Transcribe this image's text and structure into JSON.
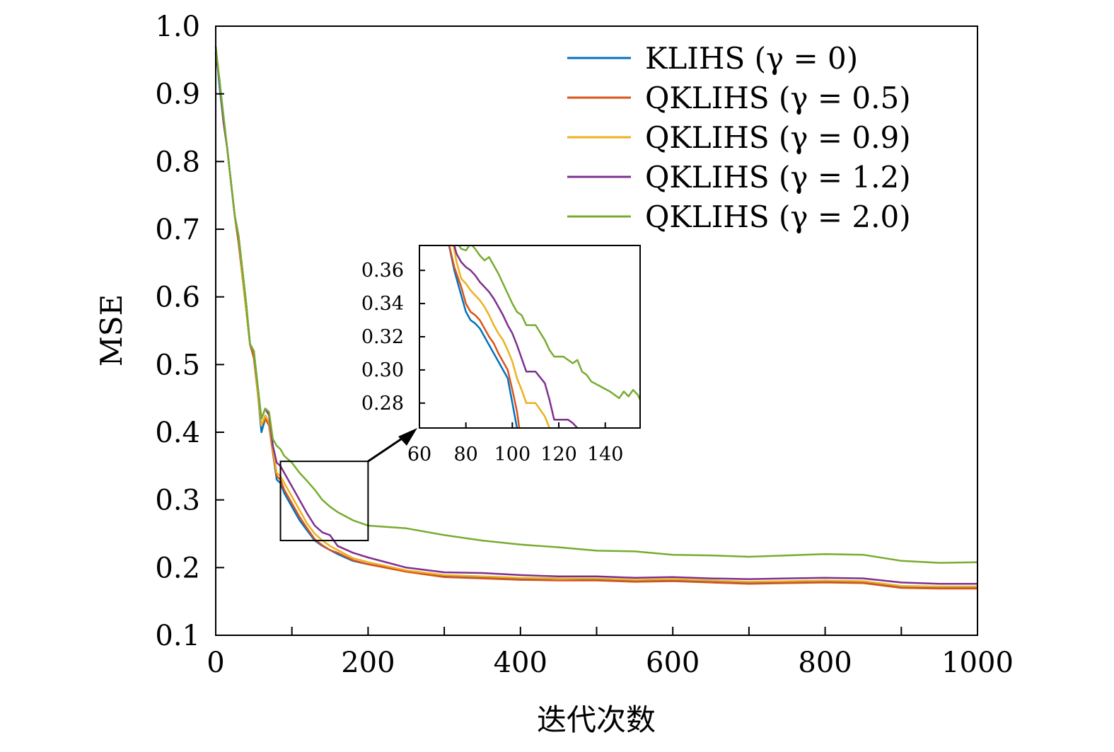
{
  "chart_data": {
    "type": "line",
    "title": "",
    "xlabel": "迭代次数",
    "ylabel": "MSE",
    "xlim": [
      0,
      1000
    ],
    "ylim": [
      0.1,
      1.0
    ],
    "x_ticks": [
      0,
      200,
      400,
      600,
      800,
      1000
    ],
    "y_ticks": [
      0.1,
      0.2,
      0.3,
      0.4,
      0.5,
      0.6,
      0.7,
      0.8,
      0.9,
      1.0
    ],
    "x_tick_labels": [
      "0",
      "200",
      "400",
      "600",
      "800",
      "1000"
    ],
    "y_tick_labels": [
      "0.1",
      "0.2",
      "0.3",
      "0.4",
      "0.5",
      "0.6",
      "0.7",
      "0.8",
      "0.9",
      "1.0"
    ],
    "legend_position": "top-right",
    "series": [
      {
        "name": "KLIHS (γ = 0)",
        "color": "#0072BD",
        "x": [
          0,
          5,
          10,
          15,
          20,
          25,
          30,
          35,
          40,
          45,
          50,
          55,
          60,
          65,
          70,
          75,
          80,
          85,
          90,
          95,
          100,
          110,
          120,
          130,
          140,
          150,
          160,
          180,
          200,
          250,
          300,
          350,
          400,
          450,
          500,
          550,
          600,
          650,
          700,
          750,
          800,
          850,
          900,
          950,
          1000
        ],
        "y": [
          0.97,
          0.91,
          0.86,
          0.82,
          0.77,
          0.72,
          0.68,
          0.63,
          0.58,
          0.53,
          0.51,
          0.46,
          0.4,
          0.42,
          0.41,
          0.37,
          0.33,
          0.325,
          0.31,
          0.3,
          0.29,
          0.27,
          0.255,
          0.24,
          0.232,
          0.226,
          0.22,
          0.21,
          0.205,
          0.195,
          0.188,
          0.186,
          0.184,
          0.184,
          0.183,
          0.181,
          0.182,
          0.179,
          0.178,
          0.179,
          0.18,
          0.179,
          0.172,
          0.171,
          0.17
        ]
      },
      {
        "name": "QKLIHS (γ = 0.5)",
        "color": "#D95319",
        "x": [
          0,
          5,
          10,
          15,
          20,
          25,
          30,
          35,
          40,
          45,
          50,
          55,
          60,
          65,
          70,
          75,
          80,
          85,
          90,
          95,
          100,
          110,
          120,
          130,
          140,
          150,
          160,
          180,
          200,
          250,
          300,
          350,
          400,
          450,
          500,
          550,
          600,
          650,
          700,
          750,
          800,
          850,
          900,
          950,
          1000
        ],
        "y": [
          0.96,
          0.92,
          0.86,
          0.82,
          0.77,
          0.72,
          0.68,
          0.63,
          0.58,
          0.53,
          0.51,
          0.46,
          0.41,
          0.42,
          0.41,
          0.37,
          0.335,
          0.33,
          0.315,
          0.305,
          0.295,
          0.275,
          0.258,
          0.242,
          0.233,
          0.226,
          0.222,
          0.211,
          0.205,
          0.194,
          0.186,
          0.184,
          0.182,
          0.181,
          0.181,
          0.179,
          0.18,
          0.178,
          0.176,
          0.177,
          0.178,
          0.177,
          0.17,
          0.169,
          0.169
        ]
      },
      {
        "name": "QKLIHS (γ = 0.9)",
        "color": "#EDB120",
        "x": [
          0,
          5,
          10,
          15,
          20,
          25,
          30,
          35,
          40,
          45,
          50,
          55,
          60,
          65,
          70,
          75,
          80,
          85,
          90,
          95,
          100,
          110,
          120,
          130,
          140,
          150,
          160,
          180,
          200,
          250,
          300,
          350,
          400,
          450,
          500,
          550,
          600,
          650,
          700,
          750,
          800,
          850,
          900,
          950,
          1000
        ],
        "y": [
          0.96,
          0.92,
          0.86,
          0.82,
          0.77,
          0.72,
          0.69,
          0.63,
          0.58,
          0.53,
          0.52,
          0.46,
          0.41,
          0.425,
          0.415,
          0.375,
          0.34,
          0.335,
          0.325,
          0.315,
          0.305,
          0.285,
          0.265,
          0.25,
          0.24,
          0.232,
          0.226,
          0.214,
          0.208,
          0.196,
          0.189,
          0.187,
          0.185,
          0.184,
          0.184,
          0.182,
          0.183,
          0.181,
          0.179,
          0.18,
          0.181,
          0.18,
          0.173,
          0.172,
          0.172
        ]
      },
      {
        "name": "QKLIHS (γ = 1.2)",
        "color": "#7E2F8E",
        "x": [
          0,
          5,
          10,
          15,
          20,
          25,
          30,
          35,
          40,
          45,
          50,
          55,
          60,
          65,
          70,
          75,
          80,
          85,
          90,
          95,
          100,
          110,
          120,
          130,
          140,
          150,
          160,
          180,
          200,
          250,
          300,
          350,
          400,
          450,
          500,
          550,
          600,
          650,
          700,
          750,
          800,
          850,
          900,
          950,
          1000
        ],
        "y": [
          0.96,
          0.92,
          0.86,
          0.82,
          0.77,
          0.72,
          0.69,
          0.64,
          0.59,
          0.53,
          0.52,
          0.47,
          0.42,
          0.435,
          0.425,
          0.38,
          0.355,
          0.35,
          0.34,
          0.33,
          0.32,
          0.3,
          0.28,
          0.262,
          0.252,
          0.248,
          0.232,
          0.222,
          0.215,
          0.2,
          0.193,
          0.192,
          0.189,
          0.187,
          0.187,
          0.185,
          0.186,
          0.184,
          0.183,
          0.184,
          0.185,
          0.184,
          0.178,
          0.176,
          0.176
        ]
      },
      {
        "name": "QKLIHS (γ = 2.0)",
        "color": "#77AC30",
        "x": [
          0,
          5,
          10,
          15,
          20,
          25,
          30,
          35,
          40,
          45,
          50,
          55,
          60,
          65,
          70,
          75,
          80,
          85,
          90,
          95,
          100,
          110,
          120,
          130,
          140,
          150,
          160,
          180,
          200,
          250,
          300,
          350,
          400,
          450,
          500,
          550,
          600,
          650,
          700,
          750,
          800,
          850,
          900,
          950,
          1000
        ],
        "y": [
          0.97,
          0.92,
          0.87,
          0.82,
          0.77,
          0.72,
          0.69,
          0.64,
          0.59,
          0.53,
          0.52,
          0.47,
          0.42,
          0.435,
          0.43,
          0.39,
          0.38,
          0.375,
          0.365,
          0.36,
          0.355,
          0.34,
          0.328,
          0.315,
          0.3,
          0.29,
          0.282,
          0.27,
          0.262,
          0.258,
          0.248,
          0.24,
          0.234,
          0.23,
          0.225,
          0.224,
          0.219,
          0.218,
          0.216,
          0.218,
          0.22,
          0.219,
          0.21,
          0.207,
          0.208
        ]
      }
    ],
    "inset": {
      "xlim": [
        60,
        155
      ],
      "ylim": [
        0.265,
        0.375
      ],
      "x_ticks": [
        60,
        80,
        100,
        120,
        140
      ],
      "y_ticks": [
        0.28,
        0.3,
        0.32,
        0.34,
        0.36
      ],
      "x_tick_labels": [
        "60",
        "80",
        "100",
        "120",
        "140"
      ],
      "y_tick_labels": [
        "0.28",
        "0.30",
        "0.32",
        "0.34",
        "0.36"
      ],
      "zoom_region": {
        "x": [
          85,
          200
        ],
        "y": [
          0.24,
          0.357
        ]
      },
      "series": [
        {
          "name": "KLIHS (γ = 0)",
          "color": "#0072BD",
          "x": [
            72,
            75,
            78,
            80,
            82,
            84,
            86,
            88,
            90,
            92,
            94,
            96,
            98,
            100,
            102
          ],
          "y": [
            0.38,
            0.36,
            0.345,
            0.335,
            0.33,
            0.328,
            0.325,
            0.32,
            0.315,
            0.31,
            0.305,
            0.3,
            0.295,
            0.28,
            0.265
          ]
        },
        {
          "name": "QKLIHS (γ = 0.5)",
          "color": "#D95319",
          "x": [
            72,
            75,
            78,
            80,
            82,
            84,
            86,
            88,
            90,
            92,
            94,
            96,
            98,
            100,
            102,
            103
          ],
          "y": [
            0.38,
            0.362,
            0.35,
            0.34,
            0.335,
            0.333,
            0.33,
            0.325,
            0.32,
            0.316,
            0.31,
            0.305,
            0.3,
            0.288,
            0.275,
            0.265
          ]
        },
        {
          "name": "QKLIHS (γ = 0.9)",
          "color": "#EDB120",
          "x": [
            74,
            76,
            78,
            80,
            82,
            84,
            86,
            88,
            90,
            92,
            94,
            96,
            98,
            100,
            102,
            104,
            106,
            110,
            114,
            116
          ],
          "y": [
            0.38,
            0.365,
            0.355,
            0.352,
            0.348,
            0.345,
            0.342,
            0.338,
            0.333,
            0.327,
            0.322,
            0.318,
            0.312,
            0.305,
            0.295,
            0.288,
            0.28,
            0.28,
            0.272,
            0.265
          ]
        },
        {
          "name": "QKLIHS (γ = 1.2)",
          "color": "#7E2F8E",
          "x": [
            74,
            76,
            78,
            80,
            82,
            84,
            86,
            88,
            90,
            92,
            94,
            96,
            98,
            100,
            102,
            104,
            106,
            110,
            114,
            116,
            118,
            124,
            126,
            128,
            129
          ],
          "y": [
            0.38,
            0.37,
            0.365,
            0.362,
            0.36,
            0.357,
            0.353,
            0.35,
            0.347,
            0.343,
            0.338,
            0.333,
            0.327,
            0.322,
            0.315,
            0.307,
            0.299,
            0.299,
            0.292,
            0.282,
            0.27,
            0.27,
            0.268,
            0.265,
            0.262
          ]
        },
        {
          "name": "QKLIHS (γ = 2.0)",
          "color": "#77AC30",
          "x": [
            76,
            78,
            80,
            82,
            84,
            86,
            88,
            90,
            92,
            94,
            96,
            98,
            100,
            102,
            104,
            106,
            110,
            114,
            116,
            118,
            120,
            122,
            126,
            128,
            130,
            132,
            134,
            138,
            142,
            146,
            148,
            150,
            152,
            154,
            155
          ],
          "y": [
            0.377,
            0.373,
            0.372,
            0.376,
            0.373,
            0.369,
            0.366,
            0.368,
            0.363,
            0.358,
            0.352,
            0.346,
            0.34,
            0.335,
            0.333,
            0.327,
            0.327,
            0.318,
            0.312,
            0.308,
            0.308,
            0.308,
            0.304,
            0.306,
            0.299,
            0.297,
            0.293,
            0.29,
            0.287,
            0.283,
            0.287,
            0.284,
            0.288,
            0.285,
            0.282
          ]
        }
      ]
    }
  }
}
